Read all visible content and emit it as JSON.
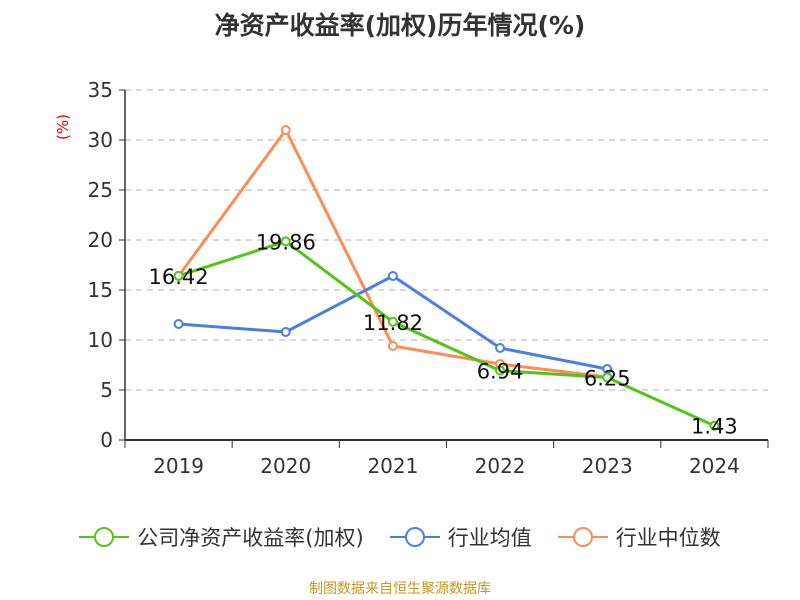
{
  "chart_data": {
    "type": "line",
    "title": "净资产收益率(加权)历年情况(%)",
    "ylabel": "(%)",
    "xlabel": "",
    "categories": [
      "2019",
      "2020",
      "2021",
      "2022",
      "2023",
      "2024"
    ],
    "ylim": [
      0,
      35
    ],
    "yticks": [
      "0",
      "5",
      "10",
      "15",
      "20",
      "25",
      "30",
      "35"
    ],
    "grid": true,
    "legend_position": "bottom",
    "series": [
      {
        "name": "公司净资产收益率(加权)",
        "color": "#52c41a",
        "values": [
          16.42,
          19.86,
          11.82,
          6.94,
          6.25,
          1.43
        ],
        "labels": [
          "16.42",
          "19.86",
          "11.82",
          "6.94",
          "6.25",
          "1.43"
        ]
      },
      {
        "name": "行业均值",
        "color": "#4a7fe0",
        "values": [
          11.6,
          10.8,
          16.4,
          9.2,
          7.1,
          null
        ]
      },
      {
        "name": "行业中位数",
        "color": "#ff8c55",
        "values": [
          16.4,
          31.0,
          9.4,
          7.6,
          6.3,
          null
        ]
      }
    ]
  },
  "source": "制图数据来自恒生聚源数据库"
}
